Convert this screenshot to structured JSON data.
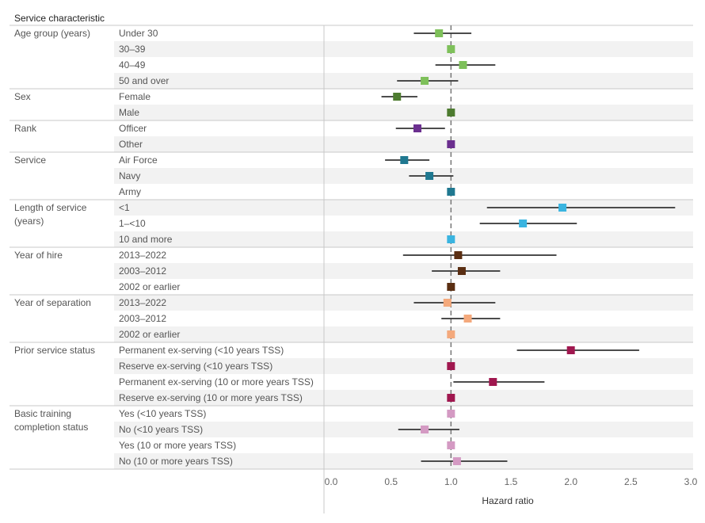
{
  "chart_data": {
    "type": "forest",
    "header": "Service characteristic",
    "xlabel": "Hazard ratio",
    "xlim": [
      0,
      3.0
    ],
    "xticks": [
      "0.0",
      "0.5",
      "1.0",
      "1.5",
      "2.0",
      "2.5",
      "3.0"
    ],
    "reference_line": 1.0,
    "groups": [
      {
        "label": "Age group (years)",
        "color": "#7ec05a",
        "rows": [
          {
            "label": "Under 30",
            "hr": 0.9,
            "lo": 0.69,
            "hi": 1.17
          },
          {
            "label": "30–39",
            "hr": 1.0,
            "lo": null,
            "hi": null
          },
          {
            "label": "40–49",
            "hr": 1.1,
            "lo": 0.87,
            "hi": 1.37
          },
          {
            "label": "50 and over",
            "hr": 0.78,
            "lo": 0.55,
            "hi": 1.06
          }
        ]
      },
      {
        "label": "Sex",
        "color": "#4d7b2f",
        "rows": [
          {
            "label": "Female",
            "hr": 0.55,
            "lo": 0.42,
            "hi": 0.72
          },
          {
            "label": "Male",
            "hr": 1.0,
            "lo": null,
            "hi": null
          }
        ]
      },
      {
        "label": "Rank",
        "color": "#6b2f8f",
        "rows": [
          {
            "label": "Officer",
            "hr": 0.72,
            "lo": 0.54,
            "hi": 0.95
          },
          {
            "label": "Other",
            "hr": 1.0,
            "lo": null,
            "hi": null
          }
        ]
      },
      {
        "label": "Service",
        "color": "#1f7890",
        "rows": [
          {
            "label": "Air Force",
            "hr": 0.61,
            "lo": 0.45,
            "hi": 0.82
          },
          {
            "label": "Navy",
            "hr": 0.82,
            "lo": 0.65,
            "hi": 1.02
          },
          {
            "label": "Army",
            "hr": 1.0,
            "lo": null,
            "hi": null
          }
        ]
      },
      {
        "label": "Length of service (years)",
        "color": "#3ab4e0",
        "rows": [
          {
            "label": "<1",
            "hr": 1.93,
            "lo": 1.3,
            "hi": 2.87
          },
          {
            "label": "1–<10",
            "hr": 1.6,
            "lo": 1.24,
            "hi": 2.05
          },
          {
            "label": "10 and more",
            "hr": 1.0,
            "lo": null,
            "hi": null
          }
        ]
      },
      {
        "label": "Year of hire",
        "color": "#5a2e12",
        "rows": [
          {
            "label": "2013–2022",
            "hr": 1.06,
            "lo": 0.6,
            "hi": 1.88
          },
          {
            "label": "2003–2012",
            "hr": 1.09,
            "lo": 0.84,
            "hi": 1.41
          },
          {
            "label": "2002 or earlier",
            "hr": 1.0,
            "lo": null,
            "hi": null
          }
        ]
      },
      {
        "label": "Year of separation",
        "color": "#f4a97c",
        "rows": [
          {
            "label": "2013–2022",
            "hr": 0.97,
            "lo": 0.69,
            "hi": 1.37
          },
          {
            "label": "2003–2012",
            "hr": 1.14,
            "lo": 0.92,
            "hi": 1.41
          },
          {
            "label": "2002 or earlier",
            "hr": 1.0,
            "lo": null,
            "hi": null
          }
        ]
      },
      {
        "label": "Prior service status",
        "color": "#a0174f",
        "rows": [
          {
            "label": "Permanent ex-serving (<10 years TSS)",
            "hr": 2.0,
            "lo": 1.55,
            "hi": 2.57
          },
          {
            "label": "Reserve ex-serving (<10 years TSS)",
            "hr": 1.0,
            "lo": null,
            "hi": null
          },
          {
            "label": "Permanent ex-serving (10 or more years TSS)",
            "hr": 1.35,
            "lo": 1.02,
            "hi": 1.78
          },
          {
            "label": "Reserve ex-serving (10 or more years TSS)",
            "hr": 1.0,
            "lo": null,
            "hi": null
          }
        ]
      },
      {
        "label": "Basic training completion status",
        "color": "#d49ac3",
        "rows": [
          {
            "label": "Yes (<10 years TSS)",
            "hr": 1.0,
            "lo": null,
            "hi": null
          },
          {
            "label": "No (<10 years TSS)",
            "hr": 0.78,
            "lo": 0.56,
            "hi": 1.07
          },
          {
            "label": "Yes (10 or more years TSS)",
            "hr": 1.0,
            "lo": null,
            "hi": null
          },
          {
            "label": "No (10 or more years TSS)",
            "hr": 1.05,
            "lo": 0.75,
            "hi": 1.47
          }
        ]
      }
    ]
  }
}
